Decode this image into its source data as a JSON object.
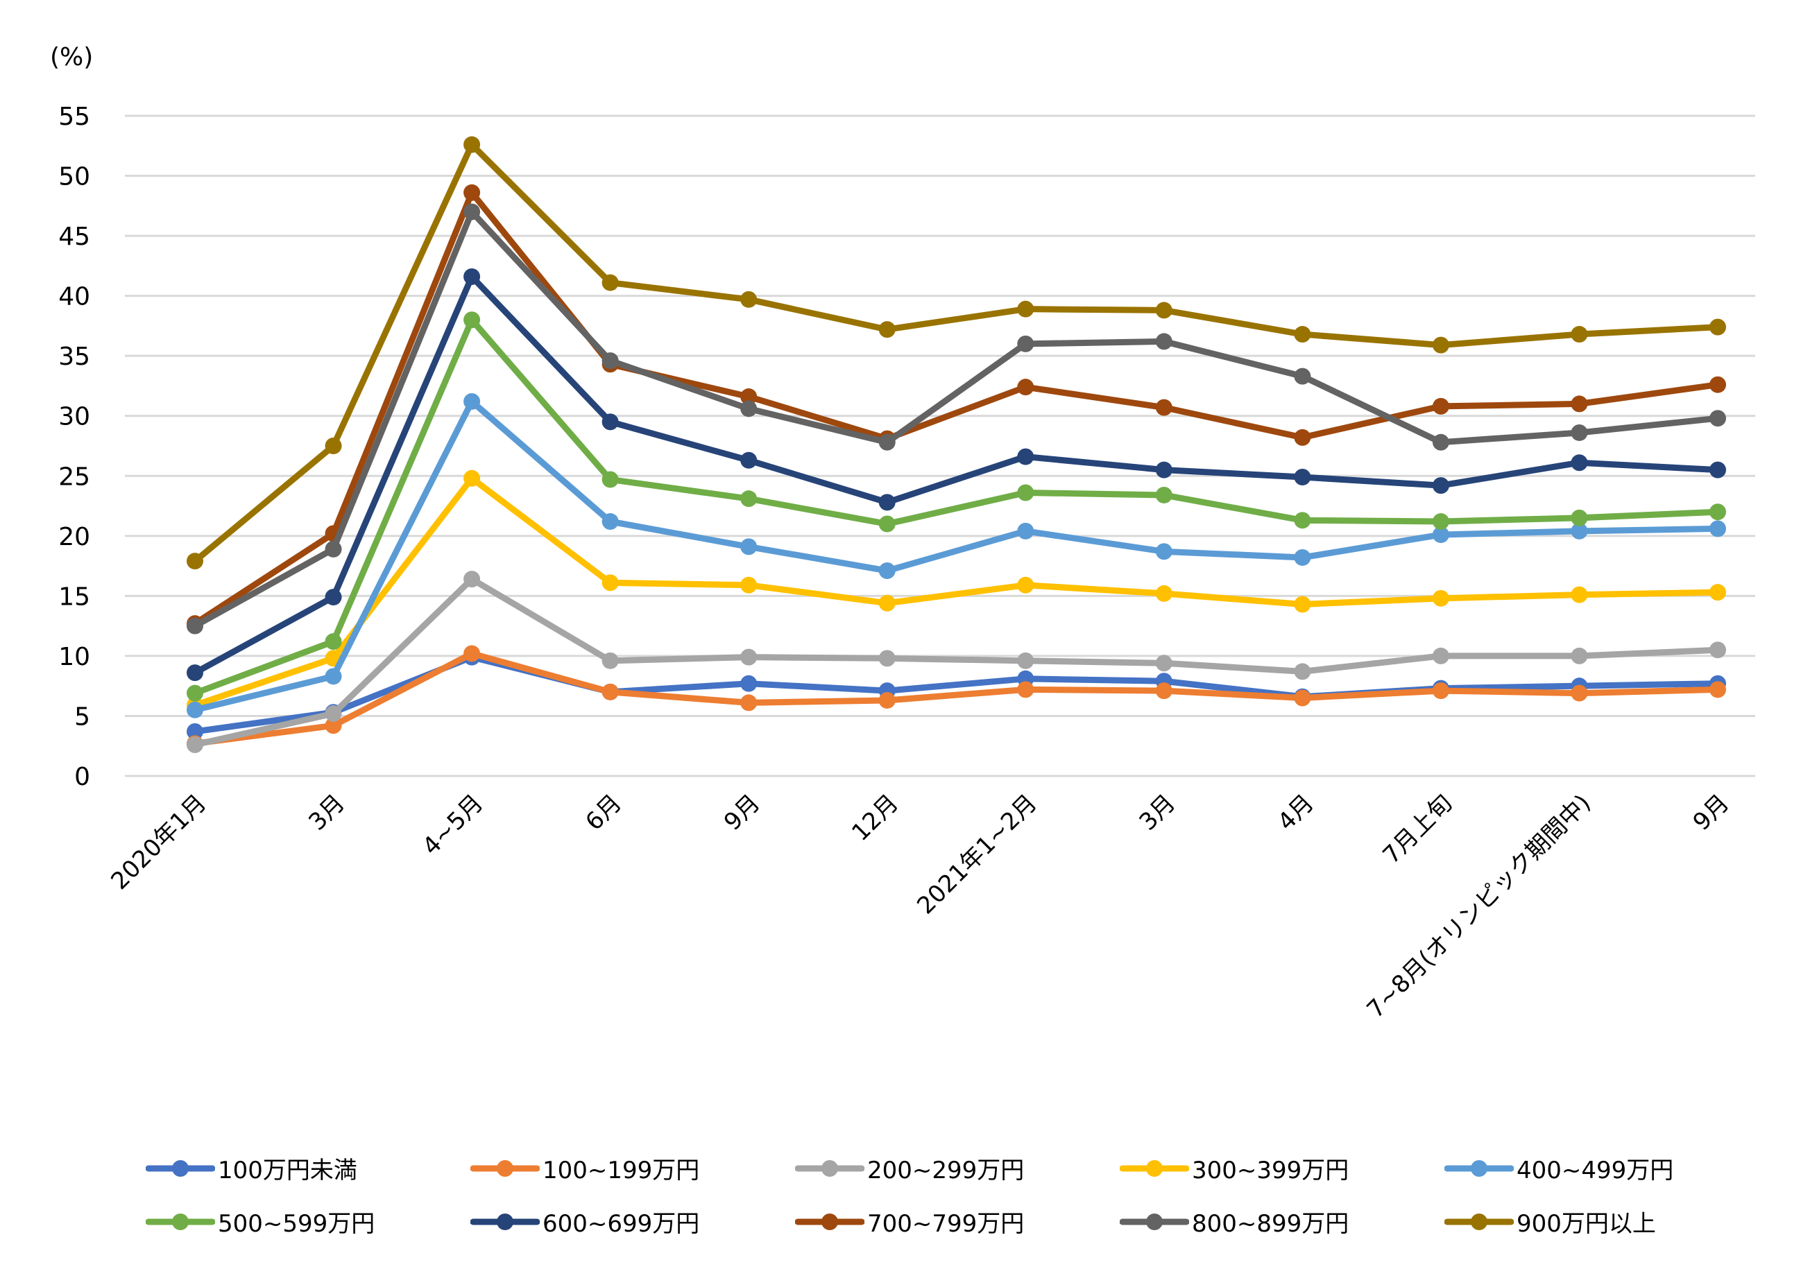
{
  "chart_data": {
    "type": "line",
    "title": "",
    "ylabel": "(%)",
    "xlabel": "",
    "ylim": [
      0,
      55
    ],
    "yticks": [
      0,
      5,
      10,
      15,
      20,
      25,
      30,
      35,
      40,
      45,
      50,
      55
    ],
    "grid": true,
    "legend_position": "bottom",
    "categories": [
      "2020年1月",
      "3月",
      "4~5月",
      "6月",
      "9月",
      "12月",
      "2021年1~2月",
      "3月",
      "4月",
      "7月上旬",
      "7~8月(オリンピック期間中)",
      "9月"
    ],
    "series": [
      {
        "name": "100万円未満",
        "color": "#4472C4",
        "values": [
          3.7,
          5.3,
          9.9,
          7.0,
          7.7,
          7.1,
          8.1,
          7.9,
          6.6,
          7.3,
          7.5,
          7.7
        ]
      },
      {
        "name": "100~199万円",
        "color": "#ED7D31",
        "values": [
          2.7,
          4.2,
          10.2,
          7.0,
          6.1,
          6.3,
          7.2,
          7.1,
          6.5,
          7.1,
          6.9,
          7.2
        ]
      },
      {
        "name": "200~299万円",
        "color": "#A5A5A5",
        "values": [
          2.6,
          5.2,
          16.4,
          9.6,
          9.9,
          9.8,
          9.6,
          9.4,
          8.7,
          10.0,
          10.0,
          10.5
        ]
      },
      {
        "name": "300~399万円",
        "color": "#FFC000",
        "values": [
          5.9,
          9.8,
          24.8,
          16.1,
          15.9,
          14.4,
          15.9,
          15.2,
          14.3,
          14.8,
          15.1,
          15.3
        ]
      },
      {
        "name": "400~499万円",
        "color": "#5B9BD5",
        "values": [
          5.5,
          8.3,
          31.2,
          21.2,
          19.1,
          17.1,
          20.4,
          18.7,
          18.2,
          20.1,
          20.4,
          20.6
        ]
      },
      {
        "name": "500~599万円",
        "color": "#70AD47",
        "values": [
          6.9,
          11.2,
          38.0,
          24.7,
          23.1,
          21.0,
          23.6,
          23.4,
          21.3,
          21.2,
          21.5,
          22.0
        ]
      },
      {
        "name": "600~699万円",
        "color": "#264478",
        "values": [
          8.6,
          14.9,
          41.6,
          29.5,
          26.3,
          22.8,
          26.6,
          25.5,
          24.9,
          24.2,
          26.1,
          25.5
        ]
      },
      {
        "name": "700~799万円",
        "color": "#9E480E",
        "values": [
          12.7,
          20.2,
          48.6,
          34.3,
          31.6,
          28.1,
          32.4,
          30.7,
          28.2,
          30.8,
          31.0,
          32.6
        ]
      },
      {
        "name": "800~899万円",
        "color": "#636363",
        "values": [
          12.5,
          18.9,
          47.0,
          34.6,
          30.6,
          27.8,
          36.0,
          36.2,
          33.3,
          27.8,
          28.6,
          29.8
        ]
      },
      {
        "name": "900万円以上",
        "color": "#997300",
        "values": [
          17.9,
          27.5,
          52.6,
          41.1,
          39.7,
          37.2,
          38.9,
          38.8,
          36.8,
          35.9,
          36.8,
          37.4
        ]
      }
    ]
  }
}
